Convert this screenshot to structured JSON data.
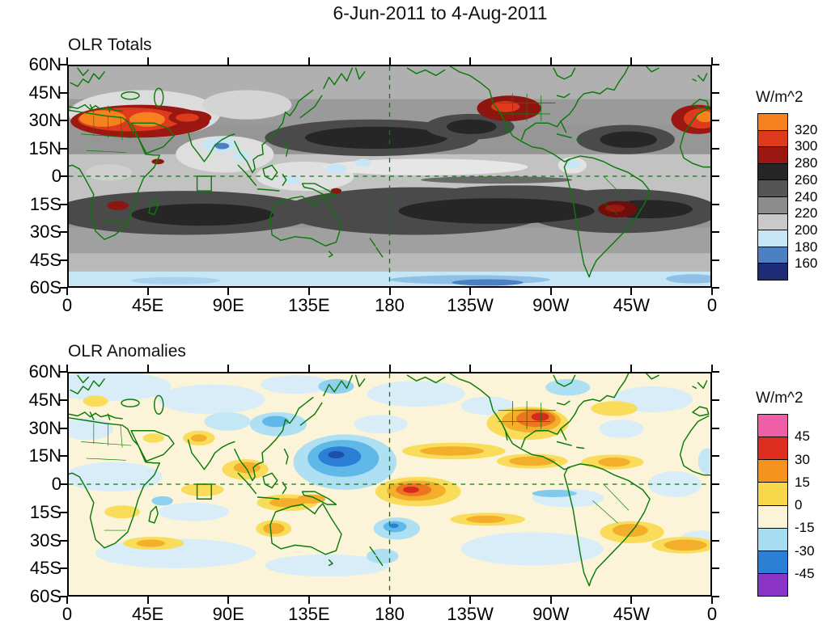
{
  "main_title": "6-Jun-2011 to 4-Aug-2011",
  "axes": {
    "lat_tick_labels": [
      "60N",
      "45N",
      "30N",
      "15N",
      "0",
      "15S",
      "30S",
      "45S",
      "60S"
    ],
    "lon_tick_labels": [
      "0",
      "45E",
      "90E",
      "135E",
      "180",
      "135W",
      "90W",
      "45W",
      "0"
    ]
  },
  "map_overlay_color": "#0b7a0b",
  "panels": [
    {
      "title": "OLR Totals",
      "colorbar": {
        "label": "W/m^2",
        "tick_labels": [
          "320",
          "300",
          "280",
          "260",
          "240",
          "220",
          "200",
          "180",
          "160"
        ],
        "colors_top_to_bottom": [
          "#f5821f",
          "#de3a1d",
          "#9b1812",
          "#262626",
          "#555555",
          "#8c8c8c",
          "#c9c9c9",
          "#c7e6f5",
          "#4b80c2",
          "#1e2b77"
        ]
      }
    },
    {
      "title": "OLR Anomalies",
      "colorbar": {
        "label": "W/m^2",
        "tick_labels": [
          "45",
          "30",
          "15",
          "0",
          "-15",
          "-30",
          "-45"
        ],
        "colors_top_to_bottom": [
          "#ef5fa7",
          "#dc2d1e",
          "#f6921e",
          "#f8d74a",
          "#fbf4d8",
          "#a6dcf0",
          "#2b7fd4",
          "#8a35c8"
        ]
      }
    }
  ],
  "chart_data": [
    {
      "type": "heatmap",
      "title": "OLR Totals",
      "subtitle_period": "6-Jun-2011 to 4-Aug-2011",
      "units": "W/m^2",
      "projection": "equirectangular, lon 0E eastward through 180 back to 0, lat 60N to 60S",
      "x_tick_labels": [
        "0",
        "45E",
        "90E",
        "135E",
        "180",
        "135W",
        "90W",
        "45W",
        "0"
      ],
      "y_tick_labels": [
        "60N",
        "45N",
        "30N",
        "15N",
        "0",
        "15S",
        "30S",
        "45S",
        "60S"
      ],
      "contour_levels": [
        160,
        180,
        200,
        220,
        240,
        260,
        280,
        300,
        320
      ],
      "legend_position": "right",
      "grid": "dashed green reference lines at equator and 180 longitude; green coastlines; small green study-region box near 75E,0-8S",
      "features": [
        {
          "region": "Sahara and Arabian Peninsula to Iran",
          "lon": "0E-60E",
          "lat": "15N-35N",
          "value": "300-330, orange/red maximum with dark-red rim"
        },
        {
          "region": "Western Sahara at right map edge",
          "lon": "345E-360E",
          "lat": "18N-33N",
          "value": "300-325"
        },
        {
          "region": "SW United States / N Mexico",
          "lon": "245E-265E",
          "lat": "25N-40N",
          "value": "280-310 dark red patch"
        },
        {
          "region": "Subtropical South America (Brazil/Paraguay)",
          "lon": "295E-310E",
          "lat": "13S-25S",
          "value": "280-300 dark red patch"
        },
        {
          "region": "Subtropical ocean basins, both hemispheres",
          "lon": "all basins",
          "lat": "10-35 deg",
          "value": "260-280, darkest gray shading"
        },
        {
          "region": "Indian monsoon / Bay of Bengal convection",
          "lon": "70E-95E",
          "lat": "8N-25N",
          "value": "170-200, pale blue minima embedded in white"
        },
        {
          "region": "Maritime Continent / west Pacific warm pool",
          "lon": "100E-160E",
          "lat": "10N-10S",
          "value": "190-220, white with pale-blue spots"
        },
        {
          "region": "Pacific ITCZ",
          "lon": "150E-270E",
          "lat": "2N-10N",
          "value": "200-220 white band"
        },
        {
          "region": "NW South America convection",
          "lon": "278E-288E",
          "lat": "0-10N",
          "value": "180-200"
        },
        {
          "region": "Southern Ocean band",
          "lon": "all",
          "lat": "52S-60S",
          "value": "170-200 pale blue with blue segments"
        },
        {
          "region": "Northern high latitudes",
          "lon": "all",
          "lat": "45N-60N",
          "value": "210-240 light-medium gray"
        }
      ]
    },
    {
      "type": "heatmap",
      "title": "OLR Anomalies",
      "subtitle_period": "6-Jun-2011 to 4-Aug-2011",
      "units": "W/m^2",
      "projection": "equirectangular, lon 0E eastward through 180 back to 0, lat 60N to 60S",
      "x_tick_labels": [
        "0",
        "45E",
        "90E",
        "135E",
        "180",
        "135W",
        "90W",
        "45W",
        "0"
      ],
      "y_tick_labels": [
        "60N",
        "45N",
        "30N",
        "15N",
        "0",
        "15S",
        "30S",
        "45S",
        "60S"
      ],
      "contour_levels": [
        -45,
        -30,
        -15,
        0,
        15,
        30,
        45
      ],
      "legend_position": "right",
      "grid": "dashed green reference lines at equator and 180 longitude; green coastlines and borders; small green study-region box near 75E,0-8S",
      "features": [
        {
          "region": "West/central tropical North Pacific",
          "lon": "140E-175E",
          "lat": "0-20N",
          "value": "-30 to -50, deep blue core (enhanced convection)"
        },
        {
          "region": "Just southeast of the date line",
          "lon": "175E-205E",
          "lat": "0-12S",
          "value": "+30 to +45, orange blob with red core (suppressed convection)"
        },
        {
          "region": "Southern US / northern Mexico",
          "lon": "250E-270E",
          "lat": "25N-38N",
          "value": "+30 to +50, orange with red core"
        },
        {
          "region": "East Asia near 30N",
          "lon": "105E-130E",
          "lat": "25N-40N",
          "value": "-15 to -30 blue patch"
        },
        {
          "region": "Tibetan Plateau / north India",
          "lon": "75E-100E",
          "lat": "25N-40N",
          "value": "-5 to -20 pale blue"
        },
        {
          "region": "Bay of Bengal to Indochina",
          "lon": "85E-110E",
          "lat": "5N-20N",
          "value": "+15 to +30 gold"
        },
        {
          "region": "South of Indonesia / north Australia",
          "lon": "105E-135E",
          "lat": "5S-15S",
          "value": "+15 to +30 gold"
        },
        {
          "region": "Central North Pacific ITCZ band",
          "lon": "200E-240E",
          "lat": "8N-18N",
          "value": "+15 to +30 gold streak"
        },
        {
          "region": "Southwest Pacific near 180",
          "lon": "175E-190E",
          "lat": "20S-30S",
          "value": "-15 to -30 blue patch"
        },
        {
          "region": "Southeast South America / South Atlantic",
          "lon": "305E-350E",
          "lat": "18S-40S",
          "value": "+15 to +30 gold streaks"
        },
        {
          "region": "Tropical Atlantic ITCZ",
          "lon": "290E-330E",
          "lat": "5N-15N",
          "value": "+15 to +30 gold"
        },
        {
          "region": "Most remaining areas",
          "lon": "global",
          "lat": "global",
          "value": "-15 to +15, cream / very pale blue background"
        }
      ]
    }
  ]
}
